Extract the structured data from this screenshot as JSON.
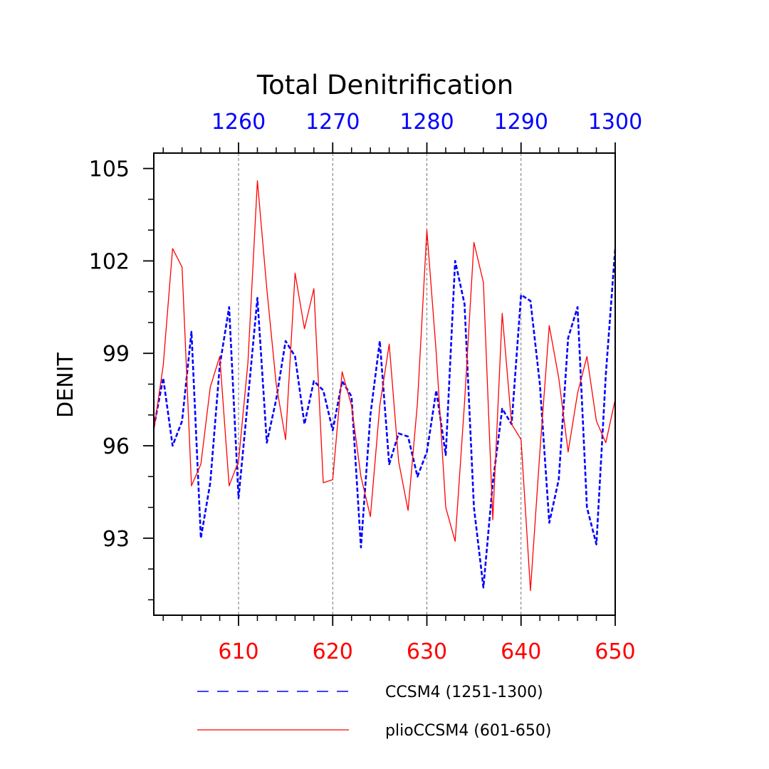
{
  "chart_data": {
    "type": "line",
    "title": "Total Denitrification",
    "ylabel": "DENIT",
    "ylim": [
      90.5,
      105.5
    ],
    "yticks": [
      93,
      96,
      99,
      102,
      105
    ],
    "grid": "vertical dashed at major bottom ticks",
    "bottom_axis": {
      "range": [
        601,
        650
      ],
      "ticks": [
        610,
        620,
        630,
        640,
        650
      ],
      "tick_labels": [
        "610",
        "620",
        "630",
        "640",
        "650"
      ],
      "color": "#ff0000"
    },
    "top_axis": {
      "range": [
        1251,
        1300
      ],
      "ticks": [
        1260,
        1270,
        1280,
        1290,
        1300
      ],
      "tick_labels": [
        "1260",
        "1270",
        "1280",
        "1290",
        "1300"
      ],
      "color": "#0000ff"
    },
    "legend_position": "bottom",
    "series": [
      {
        "name": "CCSM4 (1251-1300)",
        "axis": "top",
        "color": "#0000ff",
        "style": "dashed",
        "x": [
          1251,
          1252,
          1253,
          1254,
          1255,
          1256,
          1257,
          1258,
          1259,
          1260,
          1261,
          1262,
          1263,
          1264,
          1265,
          1266,
          1267,
          1268,
          1269,
          1270,
          1271,
          1272,
          1273,
          1274,
          1275,
          1276,
          1277,
          1278,
          1279,
          1280,
          1281,
          1282,
          1283,
          1284,
          1285,
          1286,
          1287,
          1288,
          1289,
          1290,
          1291,
          1292,
          1293,
          1294,
          1295,
          1296,
          1297,
          1298,
          1299,
          1300
        ],
        "values": [
          96.6,
          98.2,
          96.0,
          96.8,
          99.7,
          93.0,
          94.8,
          98.6,
          100.5,
          94.3,
          97.5,
          100.8,
          96.1,
          97.5,
          99.4,
          98.9,
          96.7,
          98.1,
          97.8,
          96.5,
          98.1,
          97.6,
          92.7,
          97.0,
          99.4,
          95.4,
          96.4,
          96.3,
          95.0,
          95.8,
          97.8,
          95.7,
          102.0,
          100.6,
          94.0,
          91.4,
          94.8,
          97.2,
          96.7,
          100.9,
          100.7,
          98.0,
          93.5,
          94.9,
          99.5,
          100.5,
          94.0,
          92.8,
          98.3,
          102.4
        ]
      },
      {
        "name": "plioCCSM4 (601-650)",
        "axis": "bottom",
        "color": "#ff0000",
        "style": "solid",
        "x": [
          601,
          602,
          603,
          604,
          605,
          606,
          607,
          608,
          609,
          610,
          611,
          612,
          613,
          614,
          615,
          616,
          617,
          618,
          619,
          620,
          621,
          622,
          623,
          624,
          625,
          626,
          627,
          628,
          629,
          630,
          631,
          632,
          633,
          634,
          635,
          636,
          637,
          638,
          639,
          640,
          641,
          642,
          643,
          644,
          645,
          646,
          647,
          648,
          649,
          650
        ],
        "values": [
          96.5,
          98.6,
          102.4,
          101.8,
          94.7,
          95.4,
          97.9,
          98.9,
          94.7,
          95.5,
          98.7,
          104.6,
          101.1,
          98.0,
          96.2,
          101.6,
          99.8,
          101.1,
          94.8,
          94.9,
          98.4,
          97.3,
          95.0,
          93.7,
          97.3,
          99.3,
          95.5,
          93.9,
          97.4,
          103.0,
          99.0,
          94.0,
          92.9,
          97.4,
          102.6,
          101.3,
          93.6,
          100.3,
          96.7,
          96.2,
          91.3,
          95.8,
          99.9,
          98.2,
          95.8,
          97.7,
          98.9,
          96.8,
          96.1,
          97.5
        ]
      }
    ]
  }
}
